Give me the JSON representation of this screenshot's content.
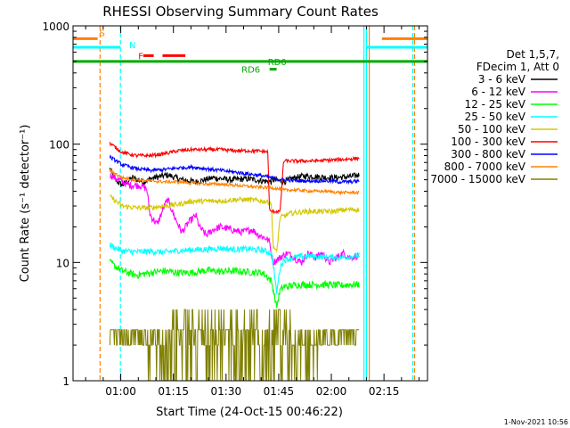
{
  "chart_data": {
    "type": "line",
    "title": "RHESSI Observing Summary Count Rates",
    "xlabel": "Start Time (24-Oct-15 00:46:22)",
    "ylabel": "Count Rate (s⁻¹ detector⁻¹)",
    "yscale": "log",
    "ylim": [
      1,
      1000
    ],
    "xlim_minutes": [
      0,
      101
    ],
    "x_ticks": [
      {
        "m": 13.6,
        "label": "01:00"
      },
      {
        "m": 28.6,
        "label": "01:15"
      },
      {
        "m": 43.6,
        "label": "01:30"
      },
      {
        "m": 58.6,
        "label": "01:45"
      },
      {
        "m": 73.6,
        "label": "02:00"
      },
      {
        "m": 88.6,
        "label": "02:15"
      }
    ],
    "y_ticks": [
      {
        "v": 1,
        "label": "1"
      },
      {
        "v": 10,
        "label": "10"
      },
      {
        "v": 100,
        "label": "100"
      },
      {
        "v": 1000,
        "label": "1000"
      }
    ],
    "legend": {
      "placement": "right",
      "header": [
        "Det 1,5,7,",
        "FDecim 1, Att 0"
      ]
    },
    "series": [
      {
        "name": "3 - 6 keV",
        "color": "#000000",
        "points": [
          [
            10.5,
            62
          ],
          [
            12,
            50
          ],
          [
            14,
            45
          ],
          [
            17,
            52
          ],
          [
            20,
            48
          ],
          [
            23,
            52
          ],
          [
            27,
            55
          ],
          [
            31,
            50
          ],
          [
            35,
            48
          ],
          [
            40,
            52
          ],
          [
            45,
            50
          ],
          [
            50,
            51
          ],
          [
            54,
            49
          ],
          [
            56.5,
            48
          ],
          [
            57,
            50
          ],
          [
            60,
            48
          ],
          [
            63,
            52
          ],
          [
            66,
            54
          ],
          [
            70,
            53
          ],
          [
            74,
            52
          ],
          [
            79,
            53
          ],
          [
            81.5,
            55
          ]
        ],
        "noise": 0.06
      },
      {
        "name": "6 - 12 keV",
        "color": "#ff00ff",
        "points": [
          [
            10.5,
            55
          ],
          [
            13,
            50
          ],
          [
            16,
            45
          ],
          [
            19,
            45
          ],
          [
            21,
            42
          ],
          [
            22,
            25
          ],
          [
            24,
            21
          ],
          [
            26,
            30
          ],
          [
            27,
            34
          ],
          [
            29,
            24
          ],
          [
            31,
            18
          ],
          [
            33,
            22
          ],
          [
            35,
            25
          ],
          [
            36,
            20
          ],
          [
            38,
            17
          ],
          [
            40,
            19
          ],
          [
            42,
            20
          ],
          [
            45,
            19
          ],
          [
            48,
            18
          ],
          [
            51,
            19
          ],
          [
            53,
            17
          ],
          [
            55,
            16
          ],
          [
            56,
            15
          ],
          [
            56.5,
            12
          ],
          [
            57,
            10
          ],
          [
            59,
            11
          ],
          [
            61,
            12
          ],
          [
            63,
            11
          ],
          [
            65,
            10
          ],
          [
            67,
            12
          ],
          [
            69,
            11
          ],
          [
            71,
            12
          ],
          [
            73,
            10
          ],
          [
            75,
            11
          ],
          [
            77,
            12
          ],
          [
            79,
            11
          ],
          [
            81.5,
            11.5
          ]
        ],
        "noise": 0.07
      },
      {
        "name": "12 - 25 keV",
        "color": "#00ff00",
        "points": [
          [
            10.5,
            10
          ],
          [
            14,
            8.5
          ],
          [
            18,
            7.8
          ],
          [
            22,
            8.2
          ],
          [
            26,
            8.5
          ],
          [
            30,
            8.2
          ],
          [
            34,
            8.2
          ],
          [
            38,
            8.6
          ],
          [
            42,
            8.4
          ],
          [
            46,
            8.5
          ],
          [
            50,
            8.3
          ],
          [
            54,
            8.2
          ],
          [
            56.5,
            7
          ],
          [
            57,
            6
          ],
          [
            58,
            4.2
          ],
          [
            59,
            5.8
          ],
          [
            60,
            6.2
          ],
          [
            64,
            6.5
          ],
          [
            68,
            6.5
          ],
          [
            72,
            6.5
          ],
          [
            76,
            6.4
          ],
          [
            79,
            6.5
          ],
          [
            81.5,
            6.5
          ]
        ],
        "noise": 0.07
      },
      {
        "name": "25 - 50 keV",
        "color": "#00ffff",
        "points": [
          [
            10.5,
            14
          ],
          [
            14,
            12.5
          ],
          [
            18,
            12.3
          ],
          [
            22,
            12.4
          ],
          [
            26,
            12.2
          ],
          [
            30,
            12.6
          ],
          [
            34,
            12.8
          ],
          [
            38,
            12.9
          ],
          [
            42,
            13.2
          ],
          [
            46,
            12.9
          ],
          [
            50,
            13.0
          ],
          [
            54,
            12.7
          ],
          [
            56.5,
            12
          ],
          [
            57,
            10
          ],
          [
            58,
            5.5
          ],
          [
            59,
            9
          ],
          [
            60,
            10.5
          ],
          [
            64,
            11.2
          ],
          [
            68,
            11.3
          ],
          [
            72,
            11.1
          ],
          [
            76,
            11
          ],
          [
            79,
            11.2
          ],
          [
            81.5,
            11.5
          ]
        ],
        "noise": 0.06
      },
      {
        "name": "50 - 100 keV",
        "color": "#d4c800",
        "points": [
          [
            10.5,
            36
          ],
          [
            14,
            30
          ],
          [
            18,
            29
          ],
          [
            22,
            29
          ],
          [
            26,
            30
          ],
          [
            30,
            31
          ],
          [
            34,
            33
          ],
          [
            38,
            33
          ],
          [
            42,
            33
          ],
          [
            46,
            34
          ],
          [
            50,
            34
          ],
          [
            54,
            33
          ],
          [
            56.5,
            32
          ],
          [
            57,
            14
          ],
          [
            58,
            12
          ],
          [
            59,
            24
          ],
          [
            62,
            26
          ],
          [
            66,
            27
          ],
          [
            70,
            27
          ],
          [
            74,
            27
          ],
          [
            78,
            28
          ],
          [
            81.5,
            28
          ]
        ],
        "noise": 0.05
      },
      {
        "name": "100 - 300 keV",
        "color": "#ff0000",
        "points": [
          [
            10.5,
            102
          ],
          [
            14,
            85
          ],
          [
            18,
            80
          ],
          [
            22,
            80
          ],
          [
            26,
            83
          ],
          [
            30,
            88
          ],
          [
            34,
            90
          ],
          [
            38,
            90
          ],
          [
            42,
            90
          ],
          [
            46,
            88
          ],
          [
            50,
            88
          ],
          [
            54,
            87
          ],
          [
            55.5,
            86
          ],
          [
            56,
            27
          ],
          [
            59,
            27
          ],
          [
            60,
            72
          ],
          [
            64,
            72
          ],
          [
            68,
            72
          ],
          [
            72,
            73
          ],
          [
            76,
            74
          ],
          [
            79,
            75
          ],
          [
            81.5,
            76
          ]
        ],
        "noise": 0.035
      },
      {
        "name": "300 - 800 keV",
        "color": "#0000ff",
        "points": [
          [
            10.5,
            78
          ],
          [
            14,
            67
          ],
          [
            18,
            62
          ],
          [
            22,
            60
          ],
          [
            26,
            61
          ],
          [
            30,
            63
          ],
          [
            34,
            64
          ],
          [
            38,
            62
          ],
          [
            42,
            60
          ],
          [
            46,
            58
          ],
          [
            50,
            56
          ],
          [
            54,
            54
          ],
          [
            56.5,
            52
          ],
          [
            60,
            50
          ],
          [
            64,
            49
          ],
          [
            68,
            49
          ],
          [
            72,
            49
          ],
          [
            76,
            48
          ],
          [
            79,
            48
          ],
          [
            81.5,
            49
          ]
        ],
        "noise": 0.035
      },
      {
        "name": "800 - 7000 keV",
        "color": "#ff8000",
        "points": [
          [
            10.5,
            60
          ],
          [
            14,
            52
          ],
          [
            18,
            50
          ],
          [
            22,
            49
          ],
          [
            26,
            48
          ],
          [
            30,
            48
          ],
          [
            34,
            47
          ],
          [
            38,
            46
          ],
          [
            42,
            46
          ],
          [
            46,
            45
          ],
          [
            50,
            44
          ],
          [
            54,
            43
          ],
          [
            56.5,
            43
          ],
          [
            60,
            41
          ],
          [
            64,
            41
          ],
          [
            68,
            40
          ],
          [
            72,
            40
          ],
          [
            76,
            39
          ],
          [
            79,
            39
          ],
          [
            81.5,
            39
          ]
        ],
        "noise": 0.03
      },
      {
        "name": "7000 - 15000 keV",
        "color": "#808000",
        "points": [
          [
            10.5,
            2.7
          ],
          [
            14,
            2.6
          ],
          [
            18,
            2.6
          ],
          [
            22,
            2.7
          ],
          [
            26,
            2.8
          ],
          [
            30,
            2.8
          ],
          [
            34,
            3.0
          ],
          [
            38,
            3.0
          ],
          [
            42,
            3.0
          ],
          [
            46,
            3.0
          ],
          [
            50,
            3.0
          ],
          [
            54,
            3.0
          ],
          [
            58,
            2.9
          ],
          [
            62,
            2.8
          ],
          [
            66,
            2.8
          ],
          [
            70,
            2.7
          ],
          [
            74,
            2.7
          ],
          [
            78,
            2.7
          ],
          [
            81.5,
            2.7
          ]
        ],
        "noise": 0.0,
        "quantized": true
      }
    ],
    "flag_bars": [
      {
        "label": "S",
        "color": "#ff8000",
        "value": 780,
        "segments": [
          [
            0,
            7
          ],
          [
            88,
            101
          ]
        ]
      },
      {
        "label": "N",
        "color": "#00ffff",
        "value": 660,
        "segments": [
          [
            0,
            13.5
          ],
          [
            83.5,
            101
          ]
        ]
      },
      {
        "label": "F",
        "color": "#ff0000",
        "value": 560,
        "segments": [
          [
            20,
            23
          ],
          [
            25.5,
            32
          ]
        ]
      },
      {
        "label": "RD0",
        "color": "#00aa00",
        "value": 500,
        "segments": [
          [
            0,
            101
          ]
        ]
      },
      {
        "label": "RD6",
        "color": "#00aa00",
        "value": 430,
        "segments": [
          [
            56,
            58
          ]
        ]
      }
    ],
    "vertical_lines": [
      {
        "m": 7.7,
        "color": "#ff8000",
        "dash": true
      },
      {
        "m": 13.5,
        "color": "#00ffff",
        "dash": true
      },
      {
        "m": 82.9,
        "color": "#00ffff",
        "dash": false
      },
      {
        "m": 83.6,
        "color": "#00ffff",
        "dash": false
      },
      {
        "m": 84.4,
        "color": "#ff8000",
        "dash": false
      },
      {
        "m": 96.8,
        "color": "#00ffff",
        "dash": true
      },
      {
        "m": 97.3,
        "color": "#ff8000",
        "dash": true
      }
    ],
    "footer_stamp": "1-Nov-2021 10:56"
  }
}
